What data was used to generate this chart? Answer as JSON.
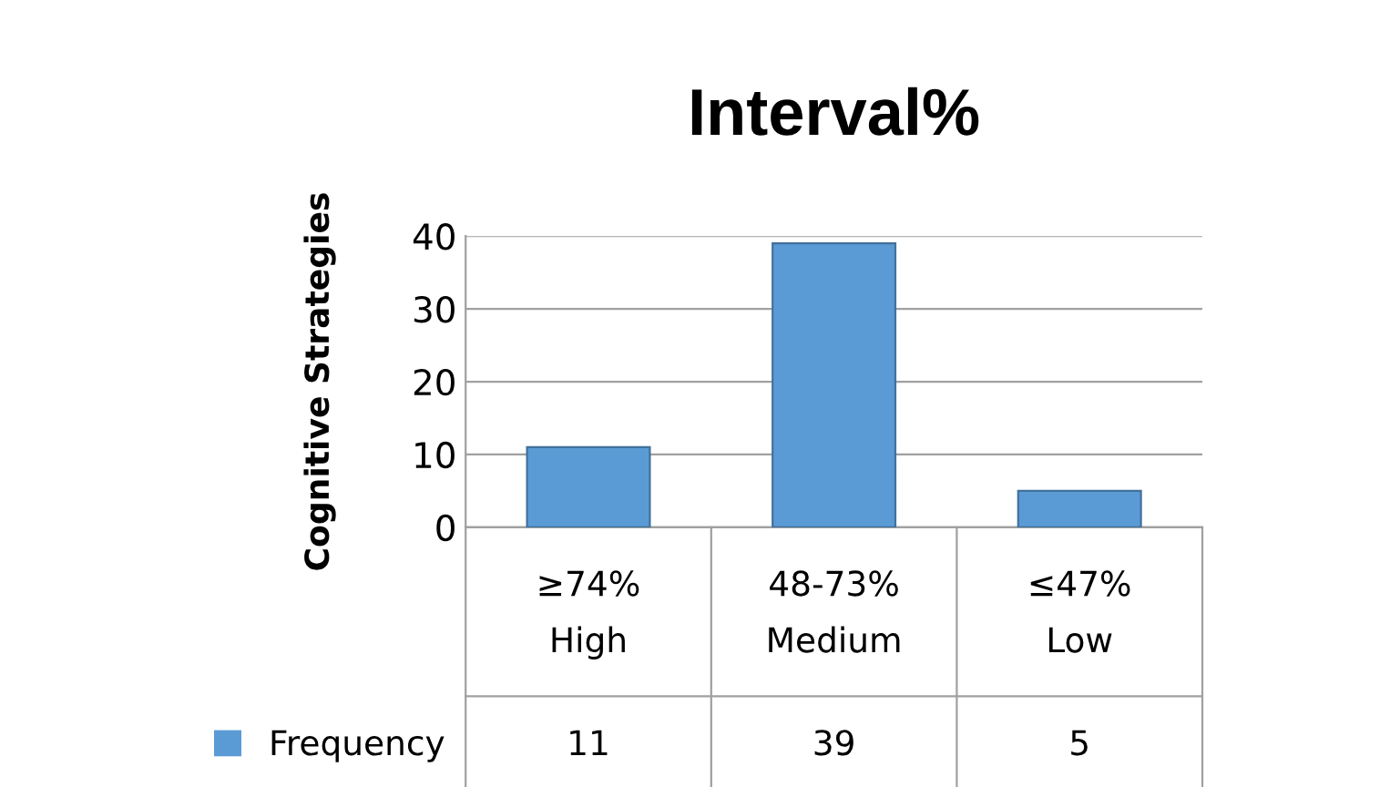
{
  "chart_data": {
    "type": "bar",
    "title": "Interval%",
    "ylabel": "Cognitive Strategies",
    "categories": [
      "≥74%\nHigh",
      "48-73%\nMedium",
      "≤47%\nLow"
    ],
    "series": [
      {
        "name": "Frequency",
        "color": "#5b9bd5",
        "values": [
          11,
          39,
          5
        ]
      }
    ],
    "ylim": [
      0,
      40
    ],
    "yticks": [
      0,
      10,
      20,
      30,
      40
    ],
    "grid": "y",
    "legend": "bottom",
    "data_labels": true
  }
}
